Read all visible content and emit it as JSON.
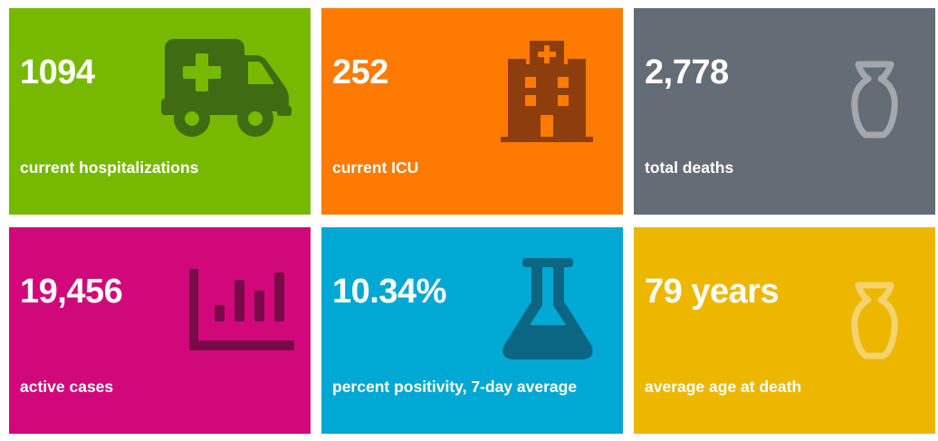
{
  "cards": [
    {
      "value": "1094",
      "label": "current hospitalizations",
      "icon": "ambulance-icon",
      "background": "#76B900",
      "icon_color": "#3F6C12"
    },
    {
      "value": "252",
      "label": "current ICU",
      "icon": "hospital-icon",
      "background": "#FF7A00",
      "icon_color": "#8E3E0C"
    },
    {
      "value": "2,778",
      "label": "total deaths",
      "icon": "urn-icon",
      "background": "#646C76",
      "icon_color": "#A3A8AD"
    },
    {
      "value": "19,456",
      "label": "active cases",
      "icon": "bar-chart-icon",
      "background": "#D1087A",
      "icon_color": "#7A0A47"
    },
    {
      "value": "10.34%",
      "label": "percent positivity, 7-day average",
      "icon": "flask-icon",
      "background": "#00A8D4",
      "icon_color": "#0B6683"
    },
    {
      "value": "79 years",
      "label": "average age at death",
      "icon": "urn-icon",
      "background": "#EDB700",
      "icon_color": "#F4D36E"
    }
  ]
}
